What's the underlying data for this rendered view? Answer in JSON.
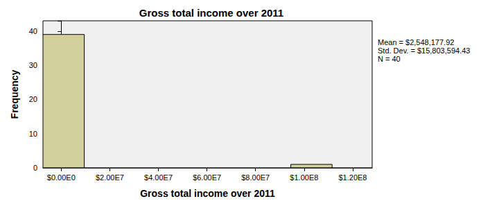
{
  "chart_data": {
    "type": "histogram",
    "title": "Gross total income over 2011",
    "x_label": "Gross total income over 2011",
    "y_label": "Frequency",
    "bins": [
      -7500000,
      9500000,
      26500000,
      43500000,
      60500000,
      77500000,
      94500000,
      111500000
    ],
    "counts": [
      39,
      0,
      0,
      0,
      0,
      0,
      1
    ],
    "color": "#d4d09c",
    "xlim": [
      -7500000,
      128000000
    ],
    "xticks": [
      {
        "value": 0,
        "label": "$0.00E0"
      },
      {
        "value": 20000000,
        "label": "$2.00E7"
      },
      {
        "value": 40000000,
        "label": "$4.00E7"
      },
      {
        "value": 60000000,
        "label": "$6.00E7"
      },
      {
        "value": 80000000,
        "label": "$8.00E7"
      },
      {
        "value": 100000000,
        "label": "$1.00E8"
      },
      {
        "value": 120000000,
        "label": "$1.20E8"
      }
    ],
    "ylim": [
      0,
      43
    ],
    "yticks": [
      0,
      10,
      20,
      30,
      40
    ],
    "grid": false,
    "annotations": [
      "Mean = $2,548,177.92",
      "Std. Dev. = $15,803,594.43",
      "N = 40"
    ]
  }
}
